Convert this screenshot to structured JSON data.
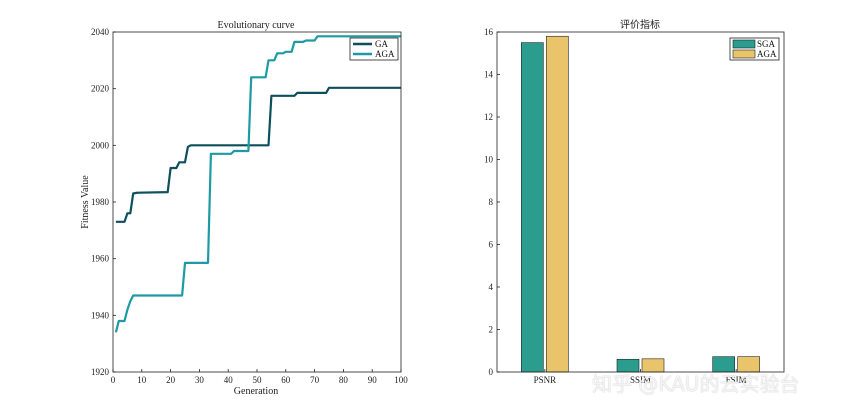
{
  "chart_data": [
    {
      "type": "line",
      "title": "Evolutionary curve",
      "xlabel": "Generation",
      "ylabel": "Fitness Value",
      "xlim": [
        0,
        100
      ],
      "ylim": [
        1920,
        2040
      ],
      "xticks": [
        0,
        10,
        20,
        30,
        40,
        50,
        60,
        70,
        80,
        90,
        100
      ],
      "yticks": [
        1920,
        1940,
        1960,
        1980,
        2000,
        2020,
        2040
      ],
      "legend_position": "top-right",
      "series": [
        {
          "name": "GA",
          "color": "#0d4f5c",
          "x": [
            1,
            4,
            5,
            6,
            7,
            8,
            9,
            19,
            20,
            22,
            23,
            25,
            26,
            27,
            28,
            54,
            55,
            63,
            64,
            74,
            75,
            100
          ],
          "y": [
            1973,
            1973,
            1976,
            1976,
            1983,
            1983.2,
            1983.3,
            1983.5,
            1992,
            1992,
            1994,
            1994,
            1999.5,
            2000,
            2000,
            2000,
            2017.5,
            2017.5,
            2018.5,
            2018.5,
            2020.3,
            2020.3
          ]
        },
        {
          "name": "AGA",
          "color": "#1d9aa3",
          "x": [
            1,
            2,
            4,
            5,
            6,
            7,
            8,
            24,
            25,
            33,
            34,
            41,
            42,
            47,
            48,
            53,
            54,
            56,
            57,
            59,
            60,
            62,
            63,
            66,
            67,
            70,
            71,
            100
          ],
          "y": [
            1934,
            1938,
            1938,
            1942,
            1945,
            1947,
            1947,
            1947,
            1958.5,
            1958.5,
            1997,
            1997,
            1998,
            1998,
            2024,
            2024,
            2030,
            2030,
            2032.5,
            2032.5,
            2033,
            2033,
            2036.5,
            2036.5,
            2037,
            2037,
            2038.5,
            2038.5
          ]
        }
      ]
    },
    {
      "type": "bar",
      "title": "评价指标",
      "xlabel": "",
      "ylabel": "",
      "ylim": [
        0,
        16
      ],
      "yticks": [
        0,
        2,
        4,
        6,
        8,
        10,
        12,
        14,
        16
      ],
      "categories": [
        "PSNR",
        "SSIM",
        "FSIM"
      ],
      "legend_position": "top-right",
      "series": [
        {
          "name": "SGA",
          "color": "#2a9d8f",
          "values": [
            15.5,
            0.6,
            0.72
          ]
        },
        {
          "name": "AGA",
          "color": "#e9c46a",
          "values": [
            15.8,
            0.62,
            0.72
          ]
        }
      ]
    }
  ],
  "watermark": "知乎 @KAU的云实验台"
}
